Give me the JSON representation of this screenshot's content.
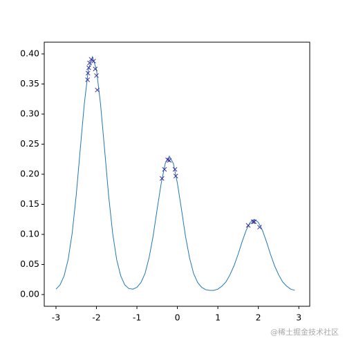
{
  "chart_data": {
    "type": "line",
    "xlim": [
      -3.29,
      3.27
    ],
    "ylim": [
      -0.0195,
      0.4195
    ],
    "xticks": [
      -3,
      -2,
      -1,
      0,
      1,
      2,
      3
    ],
    "yticks": [
      {
        "value": 0,
        "label": "0.00"
      },
      {
        "value": 0.05,
        "label": "0.05"
      },
      {
        "value": 0.1,
        "label": "0.10"
      },
      {
        "value": 0.15,
        "label": "0.15"
      },
      {
        "value": 0.2,
        "label": "0.20"
      },
      {
        "value": 0.25,
        "label": "0.25"
      },
      {
        "value": 0.3,
        "label": "0.30"
      },
      {
        "value": 0.35,
        "label": "0.35"
      },
      {
        "value": 0.4,
        "label": "0.40"
      }
    ],
    "grid": false,
    "series": [
      {
        "type": "line",
        "color": "#1f77b4",
        "x": [
          -3,
          -2.9,
          -2.8,
          -2.7,
          -2.6,
          -2.5,
          -2.4,
          -2.3,
          -2.2,
          -2.1,
          -2,
          -1.9,
          -1.8,
          -1.7,
          -1.6,
          -1.5,
          -1.4,
          -1.3,
          -1.2,
          -1.1,
          -1,
          -0.9,
          -0.8,
          -0.7,
          -0.6,
          -0.5,
          -0.4,
          -0.3,
          -0.2,
          -0.1,
          0,
          0.1,
          0.2,
          0.3,
          0.4,
          0.5,
          0.6,
          0.7,
          0.8,
          0.9,
          1,
          1.1,
          1.2,
          1.3,
          1.4,
          1.5,
          1.6,
          1.7,
          1.8,
          1.9,
          2,
          2.1,
          2.2,
          2.3,
          2.4,
          2.5,
          2.6,
          2.7,
          2.8,
          2.9
        ],
        "values": [
          0.009,
          0.016,
          0.031,
          0.058,
          0.102,
          0.165,
          0.242,
          0.317,
          0.374,
          0.395,
          0.374,
          0.317,
          0.242,
          0.165,
          0.102,
          0.058,
          0.031,
          0.016,
          0.01,
          0.009,
          0.012,
          0.02,
          0.035,
          0.061,
          0.097,
          0.142,
          0.185,
          0.218,
          0.23,
          0.218,
          0.185,
          0.142,
          0.097,
          0.061,
          0.035,
          0.02,
          0.012,
          0.008,
          0.007,
          0.007,
          0.009,
          0.014,
          0.021,
          0.033,
          0.048,
          0.067,
          0.088,
          0.107,
          0.12,
          0.125,
          0.12,
          0.107,
          0.088,
          0.067,
          0.048,
          0.033,
          0.021,
          0.014,
          0.009,
          0.007
        ]
      },
      {
        "type": "scatter",
        "marker": "x",
        "color": "#3d2f9e",
        "x": [
          -2.22,
          -2.21,
          -2.19,
          -2.17,
          -2.13,
          -2.07,
          -2.03,
          -2.0,
          -1.98,
          -0.38,
          -0.32,
          -0.24,
          -0.2,
          -0.06,
          -0.04,
          1.75,
          1.87,
          1.9,
          2.03
        ],
        "values": [
          0.357,
          0.368,
          0.377,
          0.385,
          0.391,
          0.388,
          0.375,
          0.364,
          0.34,
          0.193,
          0.208,
          0.224,
          0.223,
          0.208,
          0.197,
          0.115,
          0.121,
          0.121,
          0.112
        ]
      }
    ],
    "annotations": [
      "@稀土掘金技术社区"
    ]
  }
}
